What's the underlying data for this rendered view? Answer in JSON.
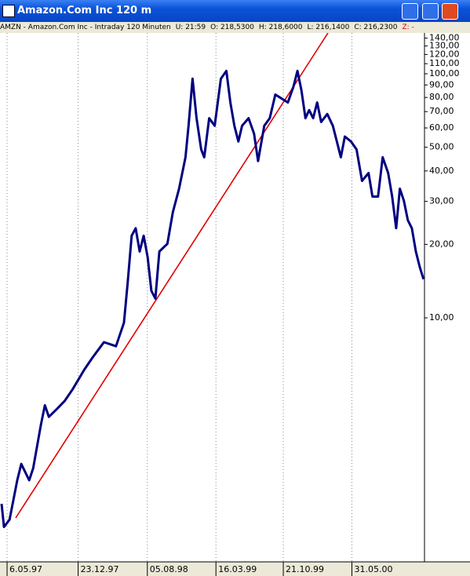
{
  "window": {
    "title": "Amazon.Com Inc 120 m",
    "info": [
      "AMZN - Amazon.Com Inc - Intraday 120 Minuten",
      "U: 21:59",
      "O: 218,5300",
      "H: 218,6000",
      "L: 216,1400",
      "C: 216,2300",
      "Z: -"
    ]
  },
  "chart_data": {
    "type": "line",
    "color": "#000080",
    "log_scale": true,
    "grid": "x",
    "x": [
      "1997-04-18",
      "1997-04-26",
      "1997-05-14",
      "1997-06-08",
      "1997-06-21",
      "1997-07-17",
      "1997-07-30",
      "1997-08-24",
      "1997-09-06",
      "1997-09-19",
      "1997-10-15",
      "1997-11-09",
      "1997-12-05",
      "1998-01-12",
      "1998-02-07",
      "1998-03-17",
      "1998-04-25",
      "1998-05-21",
      "1998-06-02",
      "1998-06-15",
      "1998-06-28",
      "1998-07-11",
      "1998-07-24",
      "1998-08-06",
      "1998-08-18",
      "1998-08-31",
      "1998-09-13",
      "1998-10-09",
      "1998-10-27",
      "1998-11-16",
      "1998-12-07",
      "1998-12-17",
      "1998-12-30",
      "1999-01-12",
      "1999-01-27",
      "1999-02-06",
      "1999-02-22",
      "1999-03-12",
      "1999-04-01",
      "1999-04-19",
      "1999-05-02",
      "1999-05-15",
      "1999-05-28",
      "1999-06-09",
      "1999-06-30",
      "1999-07-18",
      "1999-07-31",
      "1999-08-20",
      "1999-09-07",
      "1999-09-25",
      "1999-10-16",
      "1999-11-05",
      "1999-11-23",
      "1999-12-06",
      "1999-12-19",
      "2000-01-01",
      "2000-01-13",
      "2000-01-26",
      "2000-02-08",
      "2000-02-21",
      "2000-03-12",
      "2000-03-30",
      "2000-04-12",
      "2000-04-25",
      "2000-05-08",
      "2000-05-28",
      "2000-06-15",
      "2000-07-03",
      "2000-07-24",
      "2000-08-06",
      "2000-08-24",
      "2000-09-08",
      "2000-09-26",
      "2000-10-09",
      "2000-10-22",
      "2000-11-03",
      "2000-11-16",
      "2000-11-29",
      "2000-12-12",
      "2000-12-25",
      "2001-01-07",
      "2001-01-19"
    ],
    "values": [
      1.73,
      1.39,
      1.49,
      2.16,
      2.52,
      2.16,
      2.42,
      3.64,
      4.38,
      3.93,
      4.23,
      4.56,
      5.09,
      6.13,
      6.85,
      7.95,
      7.65,
      9.56,
      13.9,
      21.7,
      23.3,
      18.7,
      21.7,
      17.7,
      12.9,
      12.0,
      18.7,
      20.1,
      27.1,
      33.8,
      45.5,
      61.2,
      95.5,
      65.8,
      49.0,
      45.5,
      65.8,
      61.2,
      95.5,
      102.8,
      76.3,
      61.2,
      52.8,
      61.2,
      65.8,
      56.8,
      43.9,
      61.2,
      65.8,
      82.2,
      79.1,
      76.3,
      88.6,
      102.8,
      85.4,
      65.8,
      71.0,
      65.8,
      76.3,
      63.5,
      68.4,
      61.2,
      52.8,
      45.5,
      55.3,
      52.8,
      49.0,
      36.4,
      39.2,
      31.4,
      31.4,
      45.5,
      39.2,
      31.4,
      23.3,
      33.8,
      30.2,
      25.1,
      23.3,
      18.7,
      16.1,
      14.4
    ],
    "xlim": [
      "1997-04-13",
      "2001-01-22"
    ],
    "xticks": [
      {
        "value": "1997-05-06",
        "label": "6.05.97"
      },
      {
        "value": "1997-12-23",
        "label": "23.12.97"
      },
      {
        "value": "1998-08-05",
        "label": "05.08.98"
      },
      {
        "value": "1999-03-16",
        "label": "16.03.99"
      },
      {
        "value": "1999-10-21",
        "label": "21.10.99"
      },
      {
        "value": "2000-05-31",
        "label": "31.05.00"
      }
    ],
    "ylim": [
      1,
      147
    ],
    "yticks": [
      {
        "value": 10,
        "label": "10,00"
      },
      {
        "value": 20,
        "label": "20,00"
      },
      {
        "value": 30,
        "label": "30,00"
      },
      {
        "value": 40,
        "label": "40,00"
      },
      {
        "value": 50,
        "label": "50,00"
      },
      {
        "value": 60,
        "label": "60,00"
      },
      {
        "value": 70,
        "label": "70,00"
      },
      {
        "value": 80,
        "label": "80,00"
      },
      {
        "value": 90,
        "label": "90,00"
      },
      {
        "value": 100,
        "label": "100,00"
      },
      {
        "value": 110,
        "label": "110,00"
      },
      {
        "value": 120,
        "label": "120,00"
      },
      {
        "value": 130,
        "label": "130,00"
      },
      {
        "value": 140,
        "label": "140,00"
      }
    ]
  }
}
